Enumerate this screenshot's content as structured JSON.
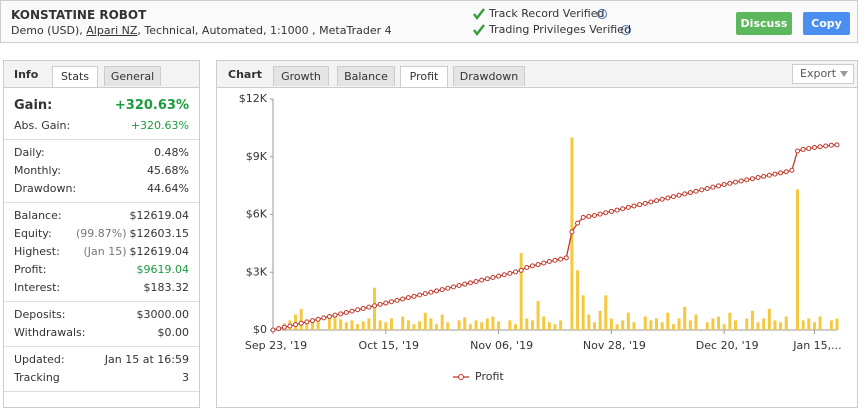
{
  "header": {
    "title": "KONSTATINE ROBOT",
    "subtitle": [
      "Demo (USD), ",
      "Alpari NZ",
      ", Technical, Automated, 1:1000 , MetaTrader 4"
    ],
    "verified": [
      "Track Record Verified",
      "Trading Privileges Verified"
    ],
    "buttons": [
      "Discuss",
      "Copy"
    ]
  },
  "stats_panel": {
    "label": "Info",
    "tabs": [
      "Stats",
      "General"
    ],
    "active_tab": 0,
    "groups": [
      {
        "rows": [
          {
            "label": "Gain:",
            "value": "+320.63%",
            "color": "#1a9c3e",
            "big": true
          },
          {
            "label": "Abs. Gain:",
            "value": "+320.63%",
            "color": "#1a9c3e"
          }
        ]
      },
      {
        "rows": [
          {
            "label": "Daily:",
            "value": "0.48%"
          },
          {
            "label": "Monthly:",
            "value": "45.68%"
          },
          {
            "label": "Drawdown:",
            "value": "44.64%"
          }
        ]
      },
      {
        "rows": [
          {
            "label": "Balance:",
            "value": "$12619.04"
          },
          {
            "label": "Equity:",
            "note": "(99.87%)",
            "value": "$12603.15"
          },
          {
            "label": "Highest:",
            "note": "(Jan 15)",
            "value": "$12619.04"
          },
          {
            "label": "Profit:",
            "value": "$9619.04",
            "color": "#1a9c3e"
          },
          {
            "label": "Interest:",
            "value": "$183.32"
          }
        ]
      },
      {
        "rows": [
          {
            "label": "Deposits:",
            "value": "$3000.00"
          },
          {
            "label": "Withdrawals:",
            "value": "$0.00"
          }
        ]
      },
      {
        "rows": [
          {
            "label": "Updated:",
            "value": "Jan 15 at 16:59"
          },
          {
            "label": "Tracking",
            "value": 3
          }
        ]
      }
    ]
  },
  "chart_panel": {
    "label": "Chart",
    "tabs": [
      "Growth",
      "Balance",
      "Profit",
      "Drawdown"
    ],
    "active_tab": 2,
    "export": "Export"
  },
  "chart_data": {
    "type": "line",
    "categories": [
      "Sep 23, '19",
      null,
      null,
      null,
      null,
      null,
      null,
      null,
      null,
      null,
      null,
      null,
      null,
      null,
      null,
      null,
      null,
      null,
      null,
      null,
      "Oct 15, '19",
      null,
      null,
      null,
      null,
      null,
      null,
      null,
      null,
      null,
      null,
      null,
      null,
      null,
      null,
      null,
      null,
      null,
      null,
      null,
      "Nov 06, '19",
      null,
      null,
      null,
      null,
      null,
      null,
      null,
      null,
      null,
      null,
      null,
      null,
      null,
      null,
      null,
      null,
      null,
      null,
      null,
      "Nov 28, '19",
      null,
      null,
      null,
      null,
      null,
      null,
      null,
      null,
      null,
      null,
      null,
      null,
      null,
      null,
      null,
      null,
      null,
      null,
      null,
      "Dec 20, '19",
      null,
      null,
      null,
      null,
      null,
      null,
      null,
      null,
      null,
      null,
      null,
      null,
      null,
      null,
      null,
      "Jan 15,...",
      null,
      null,
      null,
      null
    ],
    "series": [
      {
        "name": "Profit",
        "type": "line",
        "color": "#c0392b",
        "values": [
          0,
          70,
          140,
          210,
          280,
          350,
          420,
          490,
          560,
          630,
          700,
          770,
          840,
          910,
          980,
          1050,
          1120,
          1190,
          1260,
          1330,
          1400,
          1470,
          1540,
          1610,
          1680,
          1750,
          1820,
          1890,
          1960,
          2030,
          2100,
          2170,
          2240,
          2310,
          2380,
          2450,
          2520,
          2590,
          2660,
          2730,
          2800,
          2870,
          2940,
          3020,
          3100,
          3250,
          3330,
          3400,
          3480,
          3560,
          3620,
          3680,
          3750,
          5100,
          5550,
          5850,
          5900,
          5950,
          6020,
          6090,
          6160,
          6230,
          6300,
          6370,
          6440,
          6510,
          6580,
          6650,
          6720,
          6790,
          6860,
          6930,
          7000,
          7070,
          7140,
          7210,
          7280,
          7350,
          7420,
          7490,
          7560,
          7620,
          7680,
          7740,
          7800,
          7860,
          7920,
          7980,
          8040,
          8100,
          8160,
          8220,
          8300,
          9300,
          9380,
          9430,
          9480,
          9520,
          9560,
          9600,
          9619.04
        ]
      },
      {
        "type": "bar",
        "color": "#f5c842",
        "values": [
          0,
          200,
          350,
          500,
          800,
          1100,
          400,
          600,
          500,
          0,
          700,
          650,
          550,
          400,
          500,
          300,
          450,
          600,
          2200,
          500,
          400,
          600,
          0,
          700,
          500,
          300,
          450,
          900,
          600,
          300,
          800,
          400,
          0,
          500,
          650,
          300,
          500,
          400,
          600,
          700,
          450,
          0,
          500,
          300,
          4000,
          600,
          500,
          1500,
          700,
          400,
          300,
          500,
          0,
          10000,
          3100,
          1800,
          800,
          400,
          1000,
          1800,
          600,
          300,
          500,
          900,
          400,
          0,
          700,
          500,
          600,
          400,
          900,
          300,
          600,
          1200,
          500,
          800,
          0,
          400,
          600,
          700,
          300,
          900,
          500,
          0,
          600,
          1000,
          400,
          600,
          1100,
          500,
          400,
          700,
          0,
          7300,
          500,
          600,
          400,
          700,
          0,
          500,
          600
        ]
      }
    ],
    "ylim": [
      0,
      12000
    ],
    "yticks": [
      {
        "value": 0,
        "label": "$0"
      },
      {
        "value": 3000,
        "label": "$3K"
      },
      {
        "value": 6000,
        "label": "$6K"
      },
      {
        "value": 9000,
        "label": "$9K"
      },
      {
        "value": 12000,
        "label": "$12K"
      }
    ],
    "legend": "bottom"
  }
}
